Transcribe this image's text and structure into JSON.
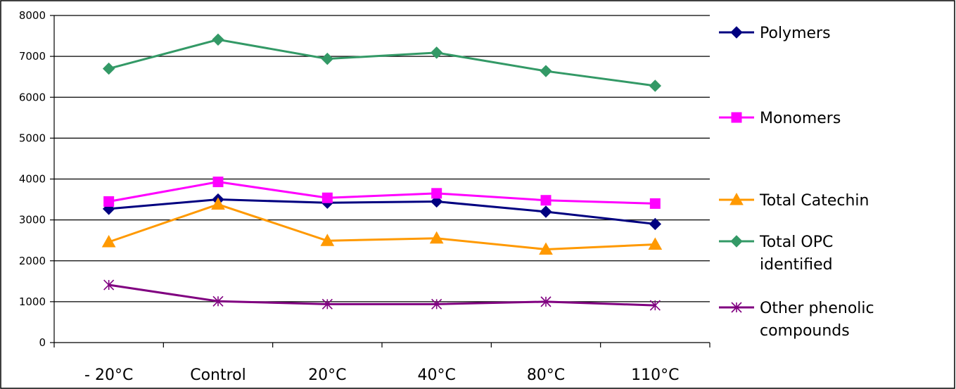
{
  "chart_data": {
    "type": "line",
    "categories": [
      "- 20°C",
      "Control",
      "20°C",
      "40°C",
      "80°C",
      "110°C"
    ],
    "ylim": [
      0,
      8000
    ],
    "yticks": [
      0,
      1000,
      2000,
      3000,
      4000,
      5000,
      6000,
      7000,
      8000
    ],
    "grid": true,
    "legend_position": "right",
    "series": [
      {
        "name": "Polymers",
        "values": [
          3270,
          3500,
          3420,
          3450,
          3200,
          2900
        ],
        "color": "#000080",
        "marker": "diamond"
      },
      {
        "name": "Monomers",
        "values": [
          3450,
          3930,
          3540,
          3650,
          3480,
          3400
        ],
        "color": "#ff00ff",
        "marker": "square"
      },
      {
        "name": "Total Catechin",
        "values": [
          2460,
          3380,
          2490,
          2550,
          2280,
          2400
        ],
        "color": "#ff9900",
        "marker": "triangle"
      },
      {
        "name": "Total OPC identified",
        "values": [
          6700,
          7410,
          6940,
          7090,
          6640,
          6280
        ],
        "color": "#339966",
        "marker": "diamond"
      },
      {
        "name": "Other phenolic compounds",
        "values": [
          1410,
          1010,
          940,
          940,
          1000,
          910
        ],
        "color": "#800080",
        "marker": "star"
      }
    ]
  }
}
